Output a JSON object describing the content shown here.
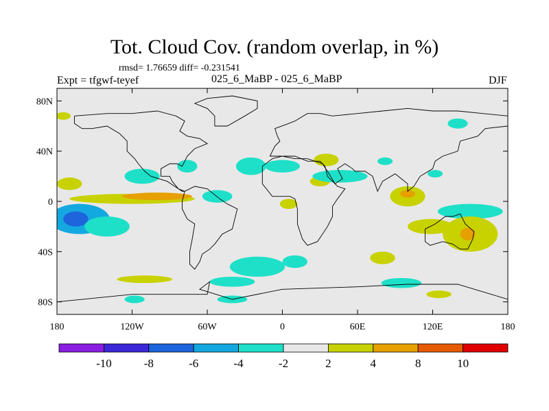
{
  "header": {
    "title": "Tot. Cloud Cov. (random overlap, in %)",
    "stats": "rmsd= 1.76659 diff= -0.231541",
    "expt": "Expt = tfgwf-teyef",
    "comparison": "025_6_MaBP - 025_6_MaBP",
    "season": "DJF"
  },
  "map": {
    "lon_range": [
      -180,
      180
    ],
    "lat_range": [
      -90,
      90
    ],
    "x_ticks": [
      {
        "lon": -180,
        "label": "180"
      },
      {
        "lon": -120,
        "label": "120W"
      },
      {
        "lon": -60,
        "label": "60W"
      },
      {
        "lon": 0,
        "label": "0"
      },
      {
        "lon": 60,
        "label": "60E"
      },
      {
        "lon": 120,
        "label": "120E"
      },
      {
        "lon": 180,
        "label": "180"
      }
    ],
    "y_ticks": [
      {
        "lat": 80,
        "label": "80N"
      },
      {
        "lat": 40,
        "label": "40N"
      },
      {
        "lat": 0,
        "label": "0"
      },
      {
        "lat": -40,
        "label": "40S"
      },
      {
        "lat": -80,
        "label": "80S"
      }
    ],
    "background_color": "#e8e8e8"
  },
  "colorbar": {
    "colors": [
      "#8a1ee0",
      "#3c28d8",
      "#1e64dc",
      "#14a8e0",
      "#1ee0c8",
      "#e8e8e8",
      "#c8d200",
      "#e6a000",
      "#e65a00",
      "#e00000"
    ],
    "labels": [
      {
        "boundary": 1,
        "label": "-10"
      },
      {
        "boundary": 2,
        "label": "-8"
      },
      {
        "boundary": 3,
        "label": "-6"
      },
      {
        "boundary": 4,
        "label": "-4"
      },
      {
        "boundary": 5,
        "label": "-2"
      },
      {
        "boundary": 6,
        "label": "2"
      },
      {
        "boundary": 7,
        "label": "4"
      },
      {
        "boundary": 8,
        "label": "8"
      },
      {
        "boundary": 9,
        "label": "10"
      }
    ]
  },
  "anomalies": [
    {
      "lon": -162,
      "lat": -14,
      "rlon": 24,
      "rlat": 12,
      "color": "#14a8e0"
    },
    {
      "lon": -165,
      "lat": -14,
      "rlon": 10,
      "rlat": 6,
      "color": "#1e64dc"
    },
    {
      "lon": -140,
      "lat": -20,
      "rlon": 18,
      "rlat": 8,
      "color": "#1ee0c8"
    },
    {
      "lon": -170,
      "lat": 14,
      "rlon": 10,
      "rlat": 5,
      "color": "#c8d200"
    },
    {
      "lon": -120,
      "lat": 2,
      "rlon": 50,
      "rlat": 4,
      "color": "#c8d200"
    },
    {
      "lon": -100,
      "lat": 4,
      "rlon": 28,
      "rlat": 3,
      "color": "#e6a000"
    },
    {
      "lon": -112,
      "lat": 20,
      "rlon": 14,
      "rlat": 6,
      "color": "#1ee0c8"
    },
    {
      "lon": -76,
      "lat": 28,
      "rlon": 8,
      "rlat": 5,
      "color": "#1ee0c8"
    },
    {
      "lon": -52,
      "lat": 4,
      "rlon": 12,
      "rlat": 5,
      "color": "#1ee0c8"
    },
    {
      "lon": -25,
      "lat": 28,
      "rlon": 12,
      "rlat": 7,
      "color": "#1ee0c8"
    },
    {
      "lon": 0,
      "lat": 28,
      "rlon": 14,
      "rlat": 5,
      "color": "#1ee0c8"
    },
    {
      "lon": 35,
      "lat": 33,
      "rlon": 10,
      "rlat": 5,
      "color": "#c8d200"
    },
    {
      "lon": 30,
      "lat": 16,
      "rlon": 8,
      "rlat": 4,
      "color": "#c8d200"
    },
    {
      "lon": 5,
      "lat": -2,
      "rlon": 7,
      "rlat": 4,
      "color": "#c8d200"
    },
    {
      "lon": 46,
      "lat": 20,
      "rlon": 22,
      "rlat": 5,
      "color": "#1ee0c8"
    },
    {
      "lon": 100,
      "lat": 4,
      "rlon": 14,
      "rlat": 8,
      "color": "#c8d200"
    },
    {
      "lon": 100,
      "lat": 6,
      "rlon": 6,
      "rlat": 3,
      "color": "#e6a000"
    },
    {
      "lon": 150,
      "lat": -8,
      "rlon": 26,
      "rlat": 6,
      "color": "#1ee0c8"
    },
    {
      "lon": 118,
      "lat": -20,
      "rlon": 18,
      "rlat": 6,
      "color": "#c8d200"
    },
    {
      "lon": 150,
      "lat": -26,
      "rlon": 22,
      "rlat": 14,
      "color": "#c8d200"
    },
    {
      "lon": 148,
      "lat": -26,
      "rlon": 6,
      "rlat": 5,
      "color": "#e6a000"
    },
    {
      "lon": 80,
      "lat": -45,
      "rlon": 10,
      "rlat": 5,
      "color": "#c8d200"
    },
    {
      "lon": -20,
      "lat": -52,
      "rlon": 22,
      "rlat": 8,
      "color": "#1ee0c8"
    },
    {
      "lon": 10,
      "lat": -48,
      "rlon": 10,
      "rlat": 5,
      "color": "#1ee0c8"
    },
    {
      "lon": -40,
      "lat": -64,
      "rlon": 18,
      "rlat": 4,
      "color": "#1ee0c8"
    },
    {
      "lon": -110,
      "lat": -62,
      "rlon": 22,
      "rlat": 3,
      "color": "#c8d200"
    },
    {
      "lon": -118,
      "lat": -78,
      "rlon": 8,
      "rlat": 3,
      "color": "#1ee0c8"
    },
    {
      "lon": -40,
      "lat": -78,
      "rlon": 12,
      "rlat": 3,
      "color": "#1ee0c8"
    },
    {
      "lon": 95,
      "lat": -65,
      "rlon": 16,
      "rlat": 4,
      "color": "#1ee0c8"
    },
    {
      "lon": 125,
      "lat": -74,
      "rlon": 10,
      "rlat": 3,
      "color": "#c8d200"
    },
    {
      "lon": 82,
      "lat": 32,
      "rlon": 6,
      "rlat": 3,
      "color": "#1ee0c8"
    },
    {
      "lon": 122,
      "lat": 22,
      "rlon": 6,
      "rlat": 3,
      "color": "#1ee0c8"
    },
    {
      "lon": 140,
      "lat": 62,
      "rlon": 8,
      "rlat": 4,
      "color": "#1ee0c8"
    },
    {
      "lon": -175,
      "lat": 68,
      "rlon": 6,
      "rlat": 3,
      "color": "#c8d200"
    }
  ],
  "coastlines": [
    [
      [
        -166,
        68
      ],
      [
        -140,
        70
      ],
      [
        -120,
        70
      ],
      [
        -100,
        72
      ],
      [
        -85,
        68
      ],
      [
        -78,
        64
      ],
      [
        -82,
        56
      ],
      [
        -76,
        52
      ],
      [
        -66,
        50
      ],
      [
        -60,
        46
      ],
      [
        -70,
        42
      ],
      [
        -76,
        36
      ],
      [
        -80,
        28
      ],
      [
        -84,
        30
      ],
      [
        -90,
        30
      ],
      [
        -97,
        26
      ],
      [
        -97,
        20
      ],
      [
        -90,
        20
      ],
      [
        -88,
        16
      ],
      [
        -83,
        10
      ],
      [
        -78,
        8
      ],
      [
        -80,
        8
      ],
      [
        -86,
        12
      ],
      [
        -92,
        16
      ],
      [
        -105,
        20
      ],
      [
        -110,
        24
      ],
      [
        -115,
        30
      ],
      [
        -118,
        34
      ],
      [
        -124,
        40
      ],
      [
        -124,
        48
      ],
      [
        -130,
        54
      ],
      [
        -140,
        60
      ],
      [
        -152,
        58
      ],
      [
        -160,
        58
      ],
      [
        -166,
        62
      ],
      [
        -166,
        68
      ]
    ],
    [
      [
        -78,
        8
      ],
      [
        -70,
        12
      ],
      [
        -60,
        10
      ],
      [
        -50,
        2
      ],
      [
        -44,
        -2
      ],
      [
        -36,
        -6
      ],
      [
        -38,
        -14
      ],
      [
        -40,
        -22
      ],
      [
        -48,
        -26
      ],
      [
        -54,
        -34
      ],
      [
        -58,
        -38
      ],
      [
        -64,
        -42
      ],
      [
        -66,
        -48
      ],
      [
        -70,
        -54
      ],
      [
        -74,
        -50
      ],
      [
        -74,
        -40
      ],
      [
        -72,
        -30
      ],
      [
        -70,
        -18
      ],
      [
        -76,
        -14
      ],
      [
        -80,
        -6
      ],
      [
        -80,
        0
      ],
      [
        -78,
        8
      ]
    ],
    [
      [
        -54,
        60
      ],
      [
        -44,
        60
      ],
      [
        -30,
        68
      ],
      [
        -20,
        74
      ],
      [
        -20,
        80
      ],
      [
        -40,
        84
      ],
      [
        -60,
        82
      ],
      [
        -70,
        78
      ],
      [
        -60,
        74
      ],
      [
        -54,
        68
      ],
      [
        -54,
        60
      ]
    ],
    [
      [
        -10,
        36
      ],
      [
        -6,
        44
      ],
      [
        -2,
        48
      ],
      [
        -4,
        52
      ],
      [
        -6,
        58
      ],
      [
        5,
        62
      ],
      [
        10,
        64
      ],
      [
        20,
        70
      ],
      [
        30,
        70
      ],
      [
        40,
        68
      ],
      [
        60,
        70
      ],
      [
        80,
        72
      ],
      [
        100,
        74
      ],
      [
        120,
        72
      ],
      [
        140,
        72
      ],
      [
        160,
        70
      ],
      [
        180,
        68
      ],
      [
        180,
        60
      ],
      [
        162,
        58
      ],
      [
        156,
        52
      ],
      [
        142,
        48
      ],
      [
        140,
        40
      ],
      [
        128,
        36
      ],
      [
        122,
        32
      ],
      [
        120,
        26
      ],
      [
        110,
        20
      ],
      [
        105,
        12
      ],
      [
        100,
        8
      ],
      [
        100,
        14
      ],
      [
        95,
        18
      ],
      [
        90,
        22
      ],
      [
        80,
        16
      ],
      [
        76,
        8
      ],
      [
        72,
        20
      ],
      [
        66,
        24
      ],
      [
        58,
        24
      ],
      [
        56,
        26
      ],
      [
        50,
        30
      ],
      [
        44,
        26
      ],
      [
        48,
        18
      ],
      [
        42,
        14
      ],
      [
        36,
        24
      ],
      [
        32,
        30
      ],
      [
        26,
        32
      ],
      [
        20,
        34
      ],
      [
        10,
        34
      ],
      [
        0,
        36
      ],
      [
        -10,
        36
      ]
    ],
    [
      [
        -16,
        28
      ],
      [
        -16,
        14
      ],
      [
        -8,
        4
      ],
      [
        6,
        4
      ],
      [
        10,
        2
      ],
      [
        12,
        -6
      ],
      [
        12,
        -18
      ],
      [
        16,
        -30
      ],
      [
        20,
        -35
      ],
      [
        28,
        -32
      ],
      [
        36,
        -20
      ],
      [
        40,
        -12
      ],
      [
        40,
        -4
      ],
      [
        44,
        2
      ],
      [
        50,
        10
      ],
      [
        44,
        12
      ],
      [
        36,
        20
      ],
      [
        34,
        28
      ],
      [
        30,
        32
      ],
      [
        20,
        32
      ],
      [
        10,
        36
      ],
      [
        0,
        36
      ],
      [
        -8,
        34
      ],
      [
        -16,
        28
      ]
    ],
    [
      [
        114,
        -22
      ],
      [
        114,
        -32
      ],
      [
        118,
        -35
      ],
      [
        128,
        -32
      ],
      [
        136,
        -34
      ],
      [
        142,
        -38
      ],
      [
        148,
        -38
      ],
      [
        152,
        -30
      ],
      [
        153,
        -24
      ],
      [
        146,
        -18
      ],
      [
        142,
        -10
      ],
      [
        136,
        -12
      ],
      [
        130,
        -12
      ],
      [
        122,
        -18
      ],
      [
        114,
        -22
      ]
    ],
    [
      [
        -180,
        -80
      ],
      [
        -120,
        -74
      ],
      [
        -60,
        -74
      ],
      [
        -58,
        -64
      ],
      [
        -66,
        -70
      ],
      [
        -40,
        -78
      ],
      [
        0,
        -70
      ],
      [
        60,
        -68
      ],
      [
        100,
        -66
      ],
      [
        140,
        -66
      ],
      [
        180,
        -78
      ]
    ]
  ]
}
